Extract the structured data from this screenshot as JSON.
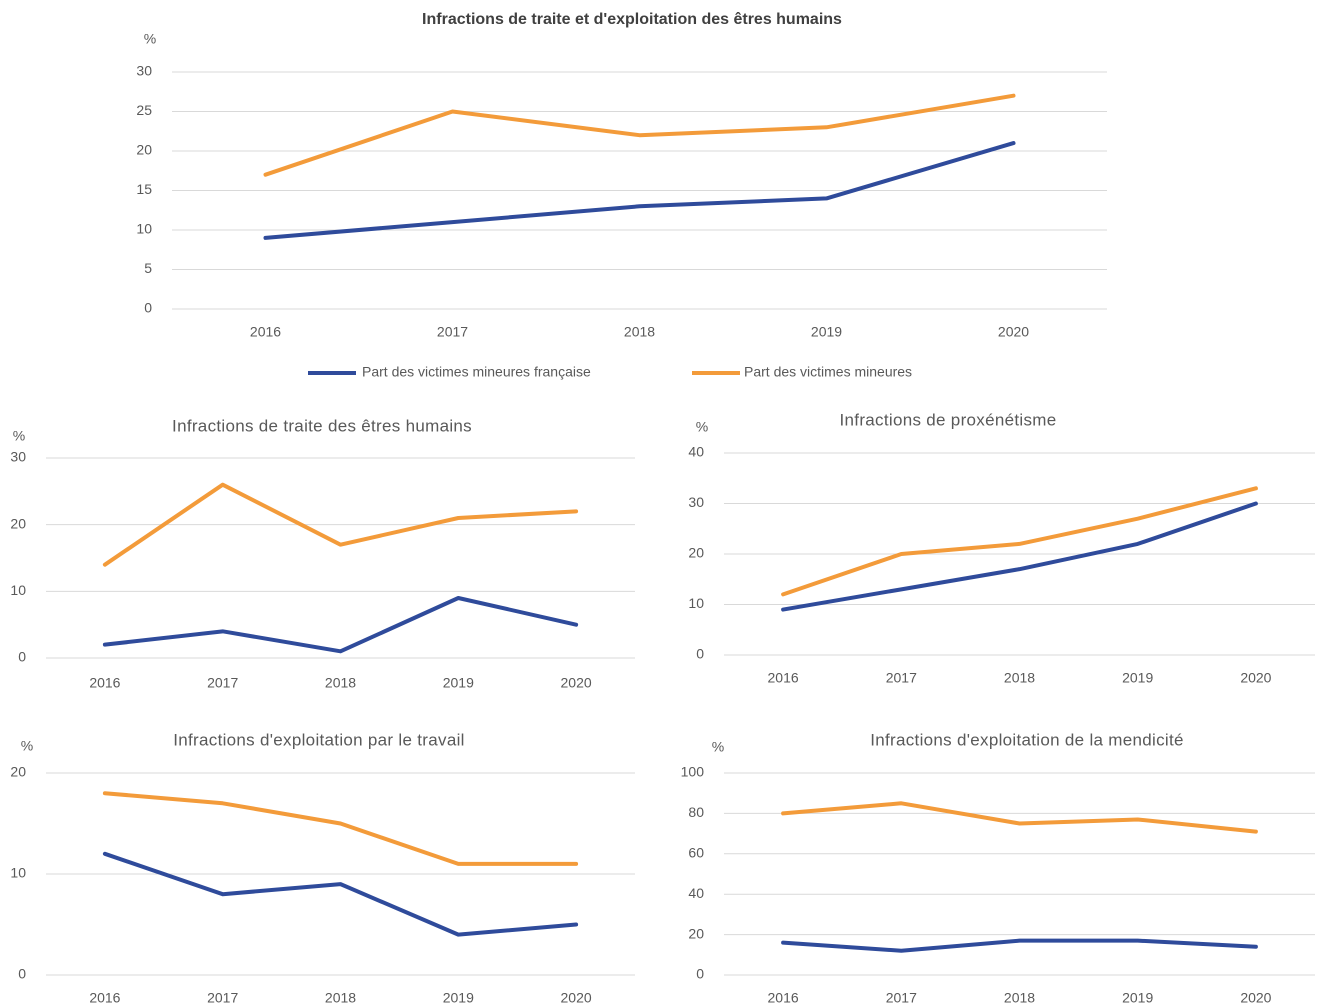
{
  "chart_data": [
    {
      "type": "line",
      "title": "Infractions de traite et d'exploitation des êtres humains",
      "y_label": "%",
      "categories": [
        "2016",
        "2017",
        "2018",
        "2019",
        "2020"
      ],
      "series": [
        {
          "name": "Part des victimes mineures française",
          "color": "#2f4b9b",
          "values": [
            9,
            11,
            13,
            14,
            21
          ]
        },
        {
          "name": "Part des victimes mineures",
          "color": "#f39b3a",
          "values": [
            17,
            25,
            22,
            23,
            27
          ]
        }
      ],
      "ylim": [
        0,
        30
      ],
      "yticks": [
        0,
        5,
        10,
        15,
        20,
        25,
        30
      ],
      "grid": true,
      "legend": "bottom"
    },
    {
      "type": "line",
      "title": "Infractions de traite des êtres humains",
      "y_label": "%",
      "categories": [
        "2016",
        "2017",
        "2018",
        "2019",
        "2020"
      ],
      "series": [
        {
          "color": "#2f4b9b",
          "values": [
            2,
            4,
            1,
            9,
            5
          ]
        },
        {
          "color": "#f39b3a",
          "values": [
            14,
            26,
            17,
            21,
            22
          ]
        }
      ],
      "ylim": [
        0,
        30
      ],
      "yticks": [
        0,
        10,
        20,
        30
      ],
      "grid": true
    },
    {
      "type": "line",
      "title": "Infractions de proxénétisme",
      "y_label": "%",
      "categories": [
        "2016",
        "2017",
        "2018",
        "2019",
        "2020"
      ],
      "series": [
        {
          "color": "#2f4b9b",
          "values": [
            9,
            13,
            17,
            22,
            30
          ]
        },
        {
          "color": "#f39b3a",
          "values": [
            12,
            20,
            22,
            27,
            33
          ]
        }
      ],
      "ylim": [
        0,
        40
      ],
      "yticks": [
        0,
        10,
        20,
        30,
        40
      ],
      "grid": true
    },
    {
      "type": "line",
      "title": "Infractions d'exploitation par le travail",
      "y_label": "%",
      "categories": [
        "2016",
        "2017",
        "2018",
        "2019",
        "2020"
      ],
      "series": [
        {
          "color": "#2f4b9b",
          "values": [
            12,
            8,
            9,
            4,
            5
          ]
        },
        {
          "color": "#f39b3a",
          "values": [
            18,
            17,
            15,
            11,
            11
          ]
        }
      ],
      "ylim": [
        0,
        20
      ],
      "yticks": [
        0,
        10,
        20
      ],
      "grid": true
    },
    {
      "type": "line",
      "title": "Infractions d'exploitation de la mendicité",
      "y_label": "%",
      "categories": [
        "2016",
        "2017",
        "2018",
        "2019",
        "2020"
      ],
      "series": [
        {
          "color": "#2f4b9b",
          "values": [
            16,
            12,
            17,
            17,
            14
          ]
        },
        {
          "color": "#f39b3a",
          "values": [
            80,
            85,
            75,
            77,
            71
          ]
        }
      ],
      "ylim": [
        0,
        100
      ],
      "yticks": [
        0,
        20,
        40,
        60,
        80,
        100
      ],
      "grid": true
    }
  ]
}
